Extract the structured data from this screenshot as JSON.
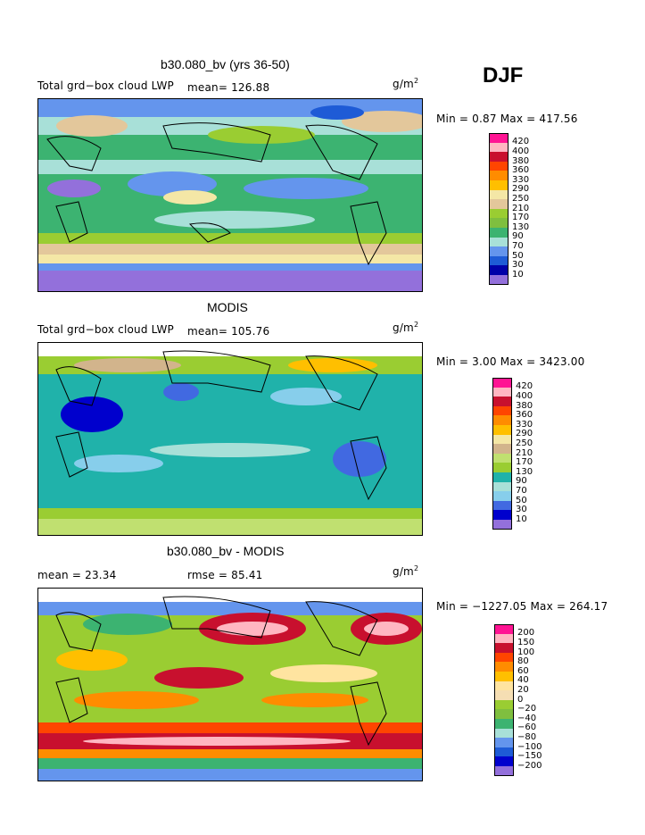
{
  "season": "DJF",
  "panels": [
    {
      "title": "b30.080_bv (yrs 36-50)",
      "left_label": "Total grd−box cloud LWP",
      "stat1": "mean= 126.88",
      "stat2": "",
      "units_base": "g/m",
      "units_exp": "2",
      "minmax": "Min =    0.87 Max = 417.56",
      "colorbar": {
        "labels": [
          "420",
          "400",
          "380",
          "360",
          "330",
          "290",
          "250",
          "210",
          "170",
          "130",
          "90",
          "70",
          "50",
          "30",
          "10"
        ],
        "colors": [
          "#ff1493",
          "#ffb6c1",
          "#c8102e",
          "#ff4500",
          "#ff8c00",
          "#ffbf00",
          "#f4e7a6",
          "#e3c79b",
          "#9acd32",
          "#7fbf3f",
          "#3cb371",
          "#a8e0d8",
          "#6495ed",
          "#1e5bd6",
          "#0000a8",
          "#9370db"
        ]
      }
    },
    {
      "title": "MODIS",
      "left_label": "Total grd−box cloud LWP",
      "stat1": "mean= 105.76",
      "stat2": "",
      "units_base": "g/m",
      "units_exp": "2",
      "minmax": "Min =    3.00 Max = 3423.00",
      "colorbar": {
        "labels": [
          "420",
          "400",
          "380",
          "360",
          "330",
          "290",
          "250",
          "210",
          "170",
          "130",
          "90",
          "70",
          "50",
          "30",
          "10"
        ],
        "colors": [
          "#ff1493",
          "#ffb6c1",
          "#c8102e",
          "#ff4500",
          "#ff8c00",
          "#ffbf00",
          "#f4e7a6",
          "#d2b48c",
          "#c0e070",
          "#9acd32",
          "#20b2aa",
          "#a8e0d8",
          "#87ceeb",
          "#4169e1",
          "#0000cd",
          "#9370db"
        ]
      }
    },
    {
      "title": "b30.080_bv - MODIS",
      "left_label": "mean =  23.34",
      "stat1": "rmse =  85.41",
      "stat2": "",
      "units_base": "g/m",
      "units_exp": "2",
      "minmax": "Min = −1227.05 Max = 264.17",
      "colorbar": {
        "labels": [
          "200",
          "150",
          "100",
          "80",
          "60",
          "40",
          "20",
          "0",
          "−20",
          "−40",
          "−60",
          "−80",
          "−100",
          "−150",
          "−200"
        ],
        "colors": [
          "#ff1493",
          "#ffb6c1",
          "#c8102e",
          "#ff4500",
          "#ff8c00",
          "#ffbf00",
          "#ffe4a0",
          "#f5deb3",
          "#9acd32",
          "#7fbf3f",
          "#3cb371",
          "#a8e0d8",
          "#6495ed",
          "#1e5bd6",
          "#0000cd",
          "#9370db"
        ]
      }
    }
  ]
}
